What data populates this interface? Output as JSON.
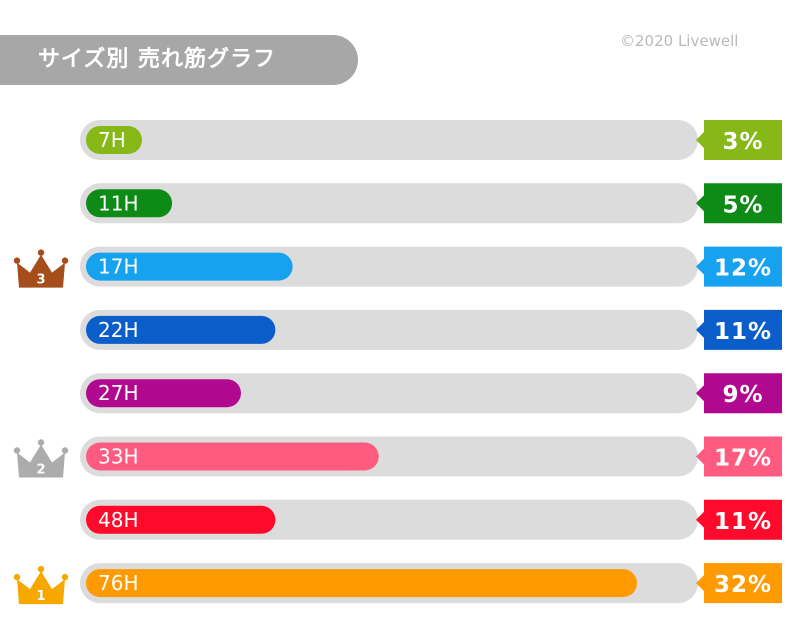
{
  "header": {
    "title": "サイズ別 売れ筋グラフ",
    "copyright": "©2020 Livewell"
  },
  "colors": {
    "title_bg": "#a7a7a7",
    "track": "#dcdcdc"
  },
  "chart_data": {
    "type": "bar",
    "orientation": "horizontal",
    "title": "サイズ別 売れ筋グラフ",
    "categories": [
      "7H",
      "11H",
      "17H",
      "22H",
      "27H",
      "33H",
      "48H",
      "76H"
    ],
    "values": [
      3,
      5,
      12,
      11,
      9,
      17,
      11,
      32
    ],
    "value_labels": [
      "3%",
      "5%",
      "12%",
      "11%",
      "9%",
      "17%",
      "11%",
      "32%"
    ],
    "xlim": [
      0,
      100
    ],
    "unit": "%",
    "colors": [
      "#86b817",
      "#0e8a16",
      "#17a2f0",
      "#0b5ec9",
      "#b0088f",
      "#ff5b80",
      "#ff0a2b",
      "#ff9a00"
    ],
    "ranks": [
      {
        "category": "17H",
        "rank": "3",
        "color": "#a64d1c"
      },
      {
        "category": "33H",
        "rank": "2",
        "color": "#acacac"
      },
      {
        "category": "76H",
        "rank": "1",
        "color": "#f7a800"
      }
    ],
    "grid": false,
    "legend": "none"
  }
}
